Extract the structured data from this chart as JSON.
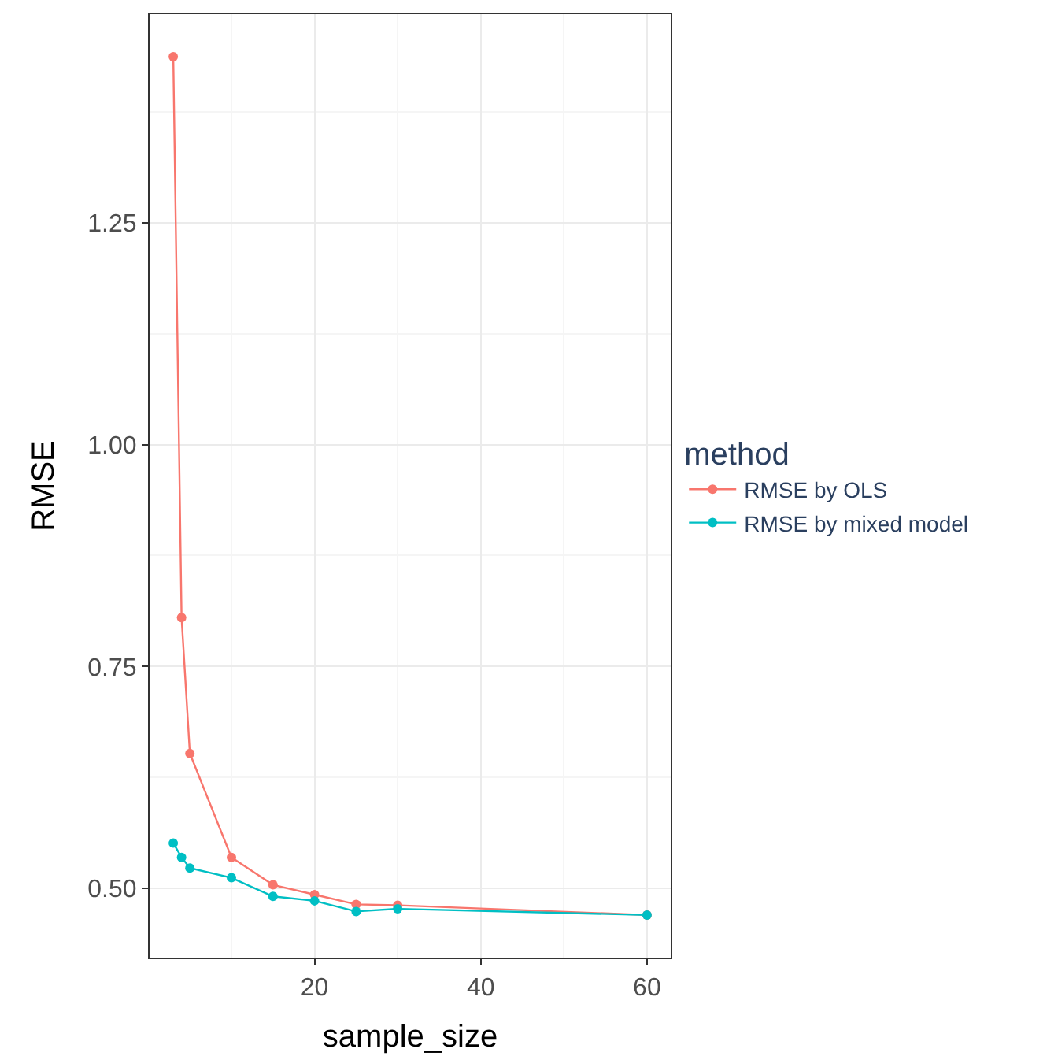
{
  "chart_data": {
    "type": "line",
    "xlabel": "sample_size",
    "ylabel": "RMSE",
    "legend_title": "method",
    "x": [
      3,
      4,
      5,
      10,
      15,
      20,
      25,
      30,
      60
    ],
    "series": [
      {
        "name": "RMSE by OLS",
        "color": "#f8766d",
        "values": [
          1.437,
          0.805,
          0.652,
          0.535,
          0.504,
          0.493,
          0.482,
          0.481,
          0.47
        ]
      },
      {
        "name": "RMSE by mixed model",
        "color": "#00bfc4",
        "values": [
          0.551,
          0.535,
          0.523,
          0.512,
          0.491,
          0.486,
          0.474,
          0.477,
          0.47
        ]
      }
    ],
    "xlim": [
      0.15,
      62.85
    ],
    "ylim": [
      0.422,
      1.485
    ],
    "xticks": [
      20,
      40,
      60
    ],
    "yticks": [
      {
        "value": 0.5,
        "label": "0.50"
      },
      {
        "value": 0.75,
        "label": "0.75"
      },
      {
        "value": 1.0,
        "label": "1.00"
      },
      {
        "value": 1.25,
        "label": "1.25"
      }
    ],
    "grid": true,
    "legend": "right",
    "marker": "circle",
    "line_style": "solid"
  }
}
